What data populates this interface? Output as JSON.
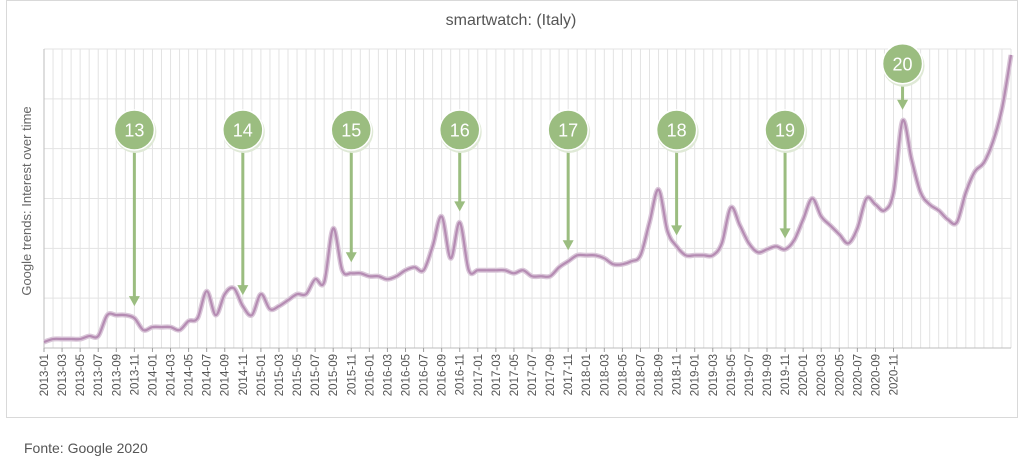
{
  "chart_data": {
    "type": "line",
    "title": "smartwatch: (Italy)",
    "ylabel": "Google trends: Interest over time",
    "xlabel": "",
    "x_start": "2013-01",
    "ylim": [
      0,
      100
    ],
    "grid": true,
    "line_color": "#b58cb3",
    "x_tick_labels": [
      "2013-01",
      "2013-03",
      "2013-05",
      "2013-07",
      "2013-09",
      "2013-11",
      "2014-01",
      "2014-03",
      "2014-05",
      "2014-07",
      "2014-09",
      "2014-11",
      "2015-01",
      "2015-03",
      "2015-05",
      "2015-07",
      "2015-09",
      "2015-11",
      "2016-01",
      "2016-03",
      "2016-05",
      "2016-07",
      "2016-09",
      "2016-11",
      "2017-01",
      "2017-03",
      "2017-05",
      "2017-07",
      "2017-09",
      "2017-11",
      "2018-01",
      "2018-03",
      "2018-05",
      "2018-07",
      "2018-09",
      "2018-11",
      "2019-01",
      "2019-03",
      "2019-05",
      "2019-07",
      "2019-09",
      "2019-11",
      "2020-01",
      "2020-03",
      "2020-05",
      "2020-07",
      "2020-09",
      "2020-11"
    ],
    "series": [
      {
        "values": [
          2,
          3,
          3,
          3,
          3,
          4,
          4,
          11,
          11,
          11,
          10,
          6,
          7,
          7,
          7,
          6,
          9,
          10,
          19,
          11,
          18,
          20,
          14,
          11,
          18,
          13,
          14,
          16,
          18,
          18,
          23,
          22,
          40,
          26,
          25,
          25,
          24,
          24,
          23,
          24,
          26,
          27,
          26,
          34,
          44,
          30,
          42,
          26,
          26,
          26,
          26,
          26,
          25,
          26,
          24,
          24,
          24,
          27,
          29,
          31,
          31,
          31,
          30,
          28,
          28,
          29,
          31,
          42,
          53,
          39,
          34,
          31,
          31,
          31,
          31,
          35,
          47,
          41,
          35,
          32,
          33,
          34,
          33,
          36,
          43,
          50,
          44,
          41,
          38,
          35,
          40,
          50,
          48,
          46,
          52,
          76,
          63,
          52,
          48,
          46,
          43,
          42,
          52,
          59,
          62,
          69,
          80,
          98
        ],
        "data_labels": [
          {
            "label": "13",
            "x": "2013-11"
          },
          {
            "label": "14",
            "x": "2014-11"
          },
          {
            "label": "15",
            "x": "2015-11"
          },
          {
            "label": "16",
            "x": "2016-11"
          },
          {
            "label": "17",
            "x": "2017-11"
          },
          {
            "label": "18",
            "x": "2018-11"
          },
          {
            "label": "19",
            "x": "2019-11"
          },
          {
            "label": "20",
            "x": "2020-12"
          }
        ]
      }
    ]
  },
  "markers": {
    "fill_color": "#9bbd80",
    "arrow_color": "#9bbd80",
    "items": [
      {
        "label": "13"
      },
      {
        "label": "14"
      },
      {
        "label": "15"
      },
      {
        "label": "16"
      },
      {
        "label": "17"
      },
      {
        "label": "18"
      },
      {
        "label": "19"
      },
      {
        "label": "20"
      }
    ]
  },
  "source_text": "Fonte: Google 2020"
}
